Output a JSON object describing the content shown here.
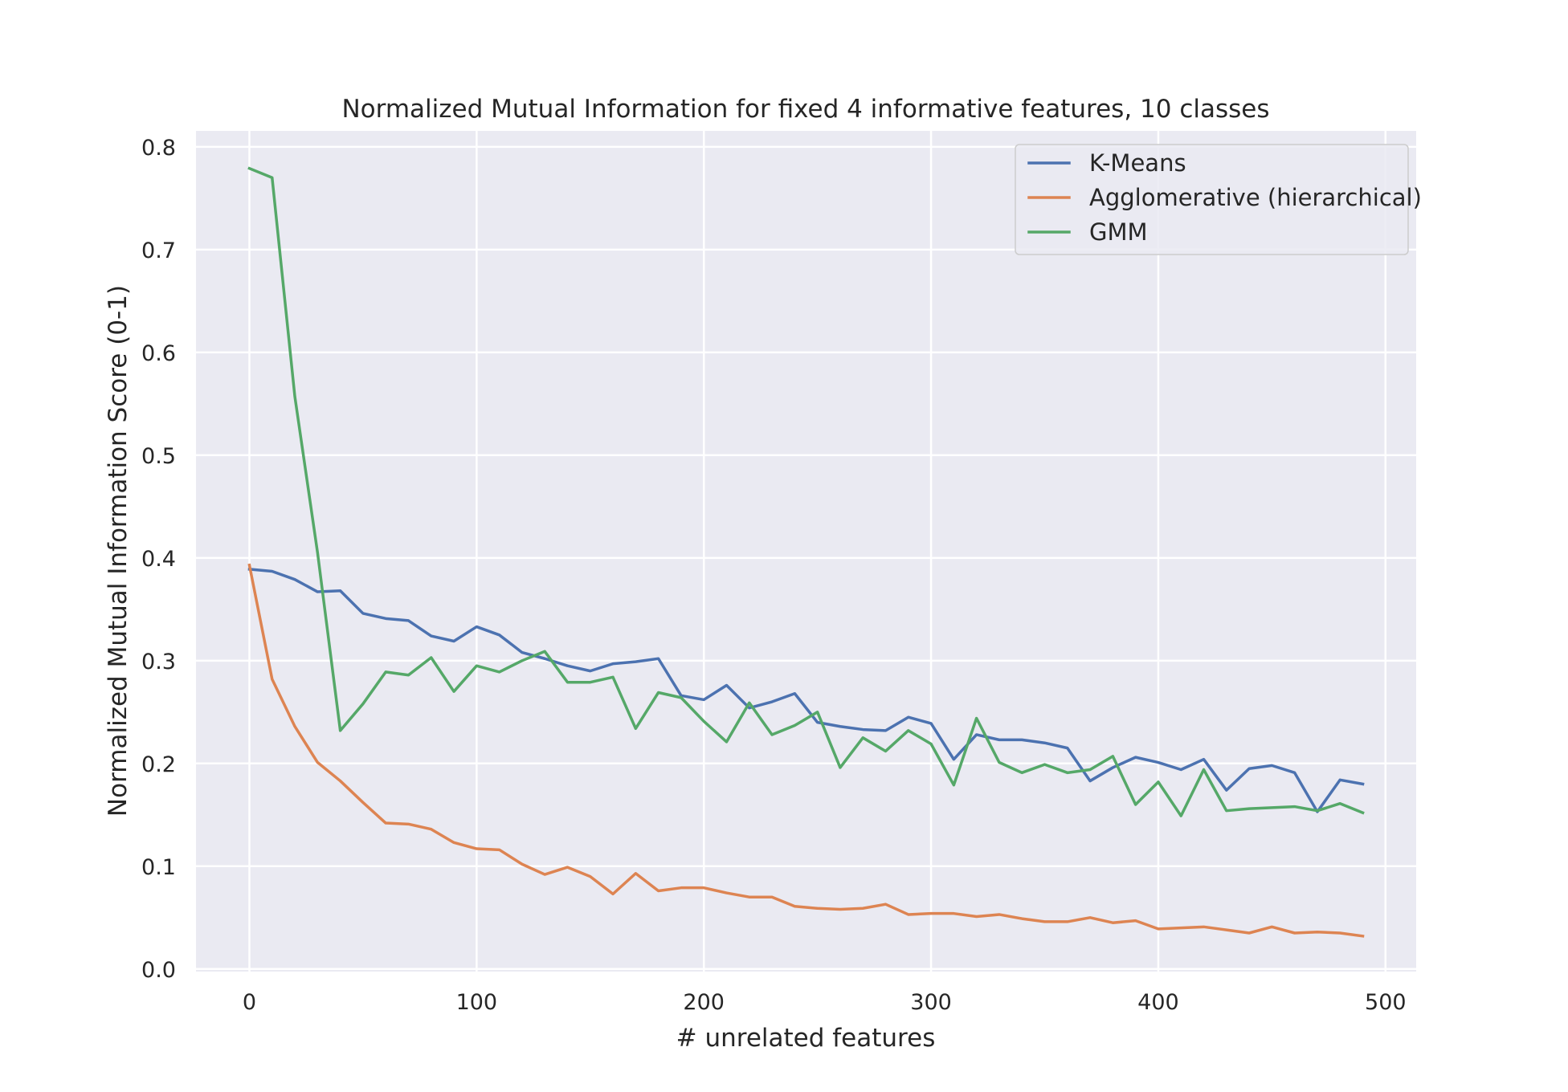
{
  "chart_data": {
    "type": "line",
    "title": "Normalized Mutual Information for fixed 4 informative features, 10 classes",
    "xlabel": "# unrelated features",
    "ylabel": "Normalized Mutual Information Score (0-1)",
    "xlim": [
      -23.5,
      513.5
    ],
    "ylim": [
      -0.0025,
      0.8155
    ],
    "xticks": [
      0,
      100,
      200,
      300,
      400,
      500
    ],
    "xtick_labels": [
      "0",
      "100",
      "200",
      "300",
      "400",
      "500"
    ],
    "yticks": [
      0.0,
      0.1,
      0.2,
      0.3,
      0.4,
      0.5,
      0.6,
      0.7,
      0.8
    ],
    "ytick_labels": [
      "0.0",
      "0.1",
      "0.2",
      "0.3",
      "0.4",
      "0.5",
      "0.6",
      "0.7",
      "0.8"
    ],
    "grid": true,
    "legend_position": "top-right",
    "background": "#eaeaf2",
    "x": [
      0,
      10,
      20,
      30,
      40,
      50,
      60,
      70,
      80,
      90,
      100,
      110,
      120,
      130,
      140,
      150,
      160,
      170,
      180,
      190,
      200,
      210,
      220,
      230,
      240,
      250,
      260,
      270,
      280,
      290,
      300,
      310,
      320,
      330,
      340,
      350,
      360,
      370,
      380,
      390,
      400,
      410,
      420,
      430,
      440,
      450,
      460,
      470,
      480,
      490
    ],
    "series": [
      {
        "name": "K-Means",
        "color": "#4c72b0",
        "values": [
          0.389,
          0.387,
          0.379,
          0.367,
          0.368,
          0.346,
          0.341,
          0.339,
          0.324,
          0.319,
          0.333,
          0.325,
          0.308,
          0.302,
          0.295,
          0.29,
          0.297,
          0.299,
          0.302,
          0.266,
          0.262,
          0.276,
          0.254,
          0.26,
          0.268,
          0.24,
          0.236,
          0.233,
          0.232,
          0.245,
          0.239,
          0.204,
          0.228,
          0.223,
          0.223,
          0.22,
          0.215,
          0.183,
          0.196,
          0.206,
          0.201,
          0.194,
          0.204,
          0.174,
          0.195,
          0.198,
          0.191,
          0.153,
          0.184,
          0.18
        ]
      },
      {
        "name": "Agglomerative (hierarchical)",
        "color": "#dd8452",
        "values": [
          0.393,
          0.282,
          0.236,
          0.201,
          0.183,
          0.162,
          0.142,
          0.141,
          0.136,
          0.123,
          0.117,
          0.116,
          0.102,
          0.092,
          0.099,
          0.09,
          0.073,
          0.093,
          0.076,
          0.079,
          0.079,
          0.074,
          0.07,
          0.07,
          0.061,
          0.059,
          0.058,
          0.059,
          0.063,
          0.053,
          0.054,
          0.054,
          0.051,
          0.053,
          0.049,
          0.046,
          0.046,
          0.05,
          0.045,
          0.047,
          0.039,
          0.04,
          0.041,
          0.038,
          0.035,
          0.041,
          0.035,
          0.036,
          0.035,
          0.032
        ]
      },
      {
        "name": "GMM",
        "color": "#55a868",
        "values": [
          0.779,
          0.77,
          0.557,
          0.405,
          0.232,
          0.258,
          0.289,
          0.286,
          0.303,
          0.27,
          0.295,
          0.289,
          0.3,
          0.309,
          0.279,
          0.279,
          0.284,
          0.234,
          0.269,
          0.264,
          0.241,
          0.221,
          0.259,
          0.228,
          0.237,
          0.25,
          0.196,
          0.225,
          0.212,
          0.232,
          0.219,
          0.179,
          0.244,
          0.201,
          0.191,
          0.199,
          0.191,
          0.194,
          0.207,
          0.16,
          0.182,
          0.149,
          0.194,
          0.154,
          0.156,
          0.157,
          0.158,
          0.154,
          0.161,
          0.152
        ]
      }
    ]
  }
}
